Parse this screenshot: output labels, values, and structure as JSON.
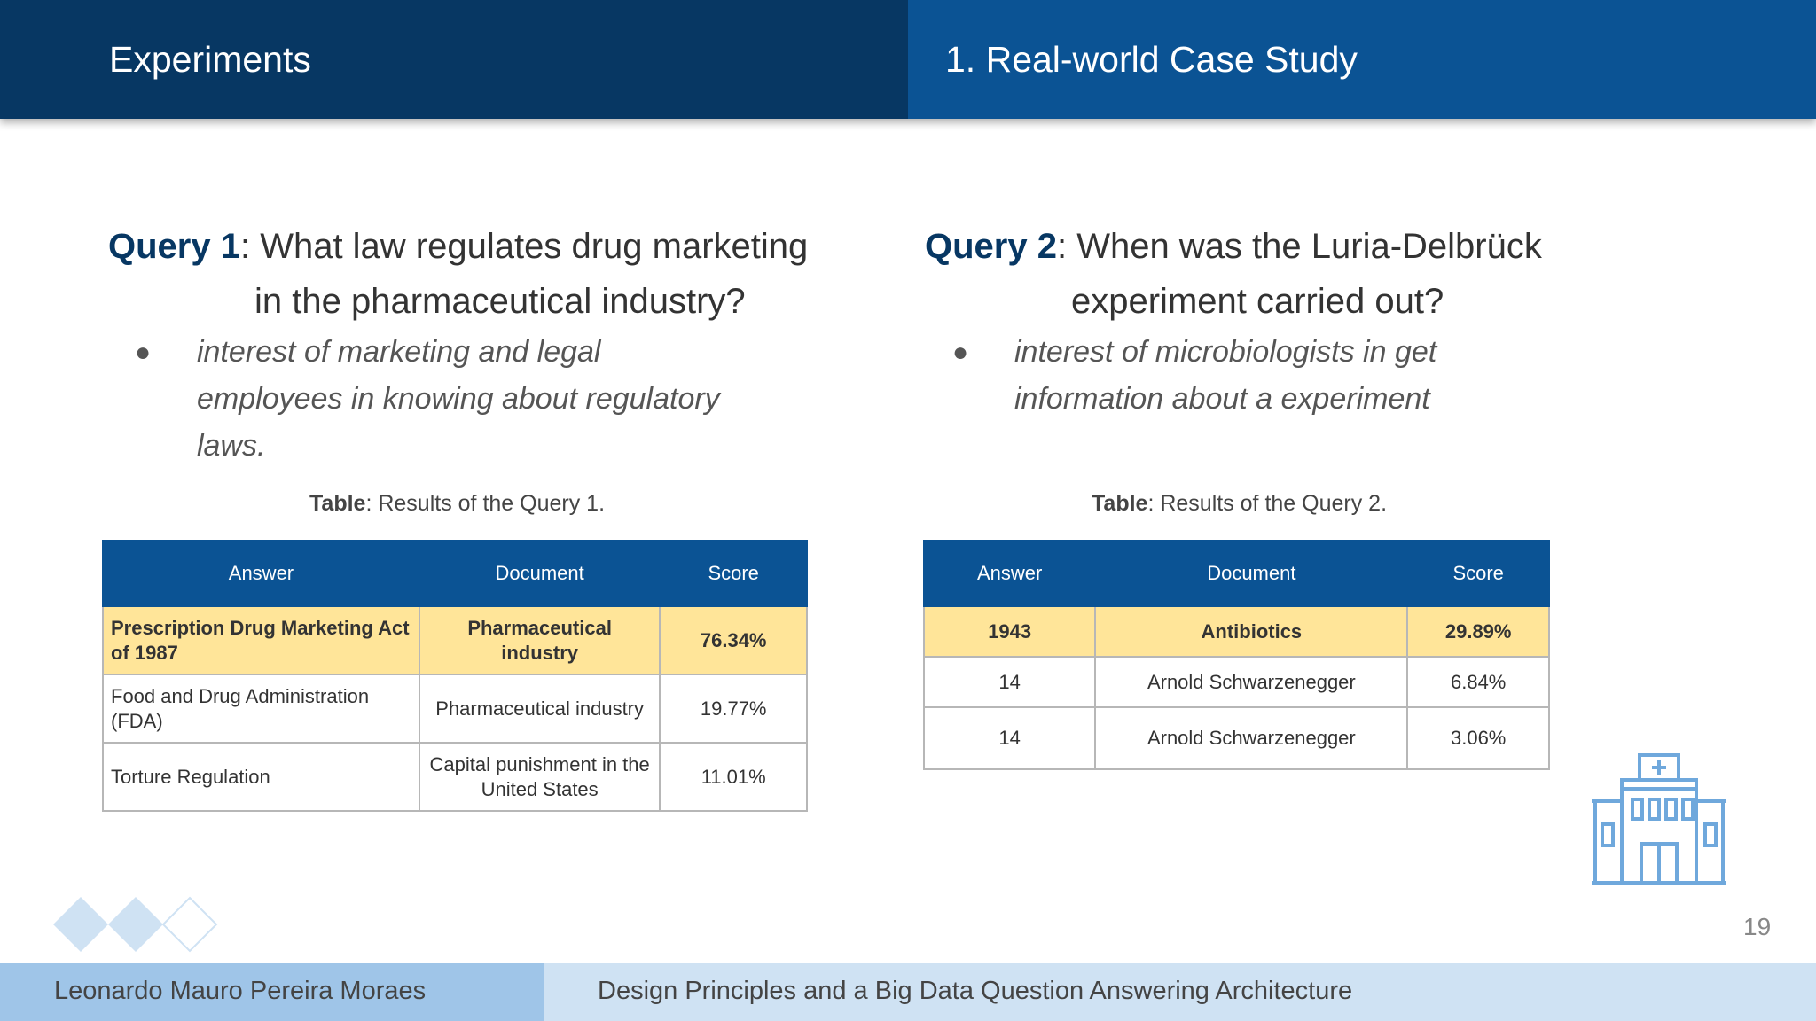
{
  "header": {
    "section": "Experiments",
    "subsection": "1. Real-world Case Study",
    "color_left": "#073763",
    "color_right": "#0b5394"
  },
  "query1": {
    "label": "Query 1",
    "question_line1": ": What law regulates drug marketing",
    "question_line2": "in the pharmaceutical industry?",
    "bullet": "interest of marketing and legal employees in knowing about regulatory laws.",
    "caption_label": "Table",
    "caption_text": ": Results of the Query 1.",
    "table": {
      "headers": [
        "Answer",
        "Document",
        "Score"
      ],
      "rows": [
        [
          "Prescription Drug Marketing Act of 1987",
          "Pharmaceutical industry",
          "76.34%"
        ],
        [
          "Food and Drug Administration (FDA)",
          "Pharmaceutical industry",
          "19.77%"
        ],
        [
          "Torture Regulation",
          "Capital punishment in the United States",
          "11.01%"
        ]
      ]
    }
  },
  "query2": {
    "label": "Query 2",
    "question_line1": ": When was the Luria-Delbrück",
    "question_line2": "experiment carried out?",
    "bullet": "interest of microbiologists in get information about a experiment",
    "caption_label": "Table",
    "caption_text": ": Results of the Query 2.",
    "table": {
      "headers": [
        "Answer",
        "Document",
        "Score"
      ],
      "rows": [
        [
          "1943",
          "Antibiotics",
          "29.89%"
        ],
        [
          "14",
          "Arnold Schwarzenegger",
          "6.84%"
        ],
        [
          "14",
          "Arnold Schwarzenegger",
          "3.06%"
        ]
      ]
    }
  },
  "highlight_color": "#ffe599",
  "icon": "hospital-icon",
  "page_number": "19",
  "footer": {
    "author": "Leonardo Mauro Pereira Moraes",
    "title": "Design Principles and a Big Data Question Answering Architecture"
  }
}
